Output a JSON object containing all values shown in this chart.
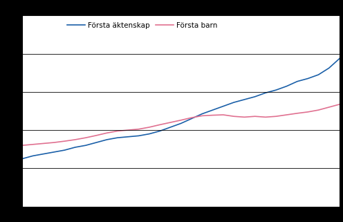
{
  "legend_labels": [
    "Första äktenskap",
    "Första barn"
  ],
  "line_colors": [
    "#1a5fa8",
    "#e07090"
  ],
  "years": [
    1982,
    1983,
    1984,
    1985,
    1986,
    1987,
    1988,
    1989,
    1990,
    1991,
    1992,
    1993,
    1994,
    1995,
    1996,
    1997,
    1998,
    1999,
    2000,
    2001,
    2002,
    2003,
    2004,
    2005,
    2006,
    2007,
    2008,
    2009,
    2010,
    2011,
    2012
  ],
  "aktenskap": [
    26.5,
    26.65,
    26.75,
    26.85,
    26.95,
    27.1,
    27.2,
    27.35,
    27.5,
    27.6,
    27.65,
    27.7,
    27.8,
    27.95,
    28.15,
    28.35,
    28.6,
    28.85,
    29.05,
    29.25,
    29.45,
    29.6,
    29.75,
    29.95,
    30.1,
    30.3,
    30.55,
    30.7,
    30.9,
    31.25,
    31.75
  ],
  "barn": [
    27.2,
    27.25,
    27.3,
    27.35,
    27.42,
    27.5,
    27.6,
    27.72,
    27.85,
    27.95,
    28.0,
    28.05,
    28.15,
    28.28,
    28.4,
    28.52,
    28.65,
    28.75,
    28.78,
    28.8,
    28.72,
    28.68,
    28.72,
    28.68,
    28.72,
    28.8,
    28.88,
    28.95,
    29.05,
    29.2,
    29.35
  ],
  "ylim": [
    24.0,
    34.0
  ],
  "xlim": [
    1982,
    2012
  ],
  "ytick_interval": 2,
  "background_color": "#ffffff",
  "outer_background": "#000000",
  "line_width": 1.2,
  "legend_fontsize": 7.5
}
